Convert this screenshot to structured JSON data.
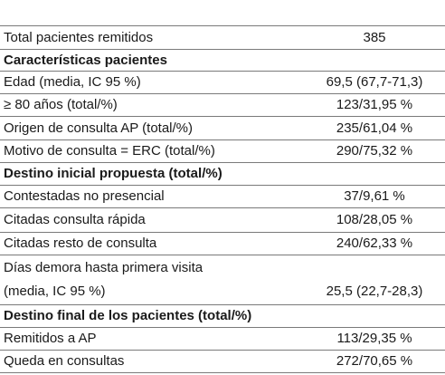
{
  "rows": [
    {
      "label": "Total pacientes remitidos",
      "value": "385"
    },
    {
      "label": "Características pacientes",
      "value": ""
    },
    {
      "label": "Edad (media, IC 95 %)",
      "value": "69,5 (67,7-71,3)"
    },
    {
      "label": "≥ 80 años (total/%)",
      "value": "123/31,95 %"
    },
    {
      "label": "Origen de consulta AP (total/%)",
      "value": "235/61,04 %"
    },
    {
      "label": "Motivo de consulta = ERC (total/%)",
      "value": "290/75,32 %"
    },
    {
      "label": "Destino inicial propuesta (total/%)",
      "value": ""
    },
    {
      "label": "Contestadas no presencial",
      "value": "37/9,61 %"
    },
    {
      "label": "Citadas consulta rápida",
      "value": "108/28,05 %"
    },
    {
      "label": "Citadas resto de consulta",
      "value": "240/62,33 %"
    },
    {
      "label_line1": "Días demora hasta primera visita",
      "label_line2": "(media, IC 95 %)",
      "value": "25,5 (22,7-28,3)"
    },
    {
      "label": "Destino final de los pacientes (total/%)",
      "value": ""
    },
    {
      "label": "Remitidos a AP",
      "value": "113/29,35 %"
    },
    {
      "label": "Queda en consultas",
      "value": "272/70,65 %"
    }
  ]
}
